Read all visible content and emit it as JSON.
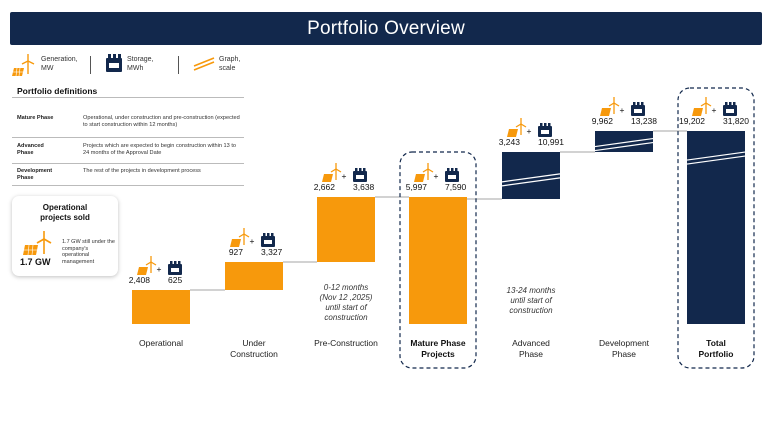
{
  "title": "Portfolio Overview",
  "legend": {
    "generation": "Generation, MW",
    "storage": "Storage, MWh",
    "graph": "Graph, scale"
  },
  "definitions": {
    "title": "Portfolio definitions",
    "rows": [
      {
        "key": "Mature Phase",
        "value": "Operational, under construction and pre-construction (expected to start construction within 12 months)"
      },
      {
        "key": "Advanced Phase",
        "value": "Projects which are expected to begin construction within 13 to 24 months of the Approval Date"
      },
      {
        "key": "Development Phase",
        "value": "The rest of the projects in development process"
      }
    ]
  },
  "sold": {
    "title": "Operational projects sold",
    "value": "1.7 GW",
    "note": "1.7 GW still under the company's operational management"
  },
  "colors": {
    "orange": "#f7990c",
    "navy": "#12284c",
    "bar_border": "#12284c"
  },
  "chart_data": {
    "type": "bar",
    "subtype": "waterfall",
    "categories": [
      "Operational",
      "Under Construction",
      "Pre-Construction",
      "Mature Phase Projects",
      "Advanced Phase",
      "Development Phase",
      "Total Portfolio"
    ],
    "series": [
      {
        "name": "Generation, MW",
        "values": [
          2408,
          927,
          2662,
          5997,
          3243,
          9962,
          19202
        ]
      },
      {
        "name": "Storage, MWh",
        "values": [
          625,
          3327,
          3638,
          7590,
          10991,
          13238,
          31820
        ]
      }
    ],
    "labels": [
      [
        "2,408",
        "625"
      ],
      [
        "927",
        "3,327"
      ],
      [
        "2,662",
        "3,638"
      ],
      [
        "5,997",
        "7,590"
      ],
      [
        "3,243",
        "10,991"
      ],
      [
        "9,962",
        "13,238"
      ],
      [
        "19,202",
        "31,820"
      ]
    ],
    "bar_kind": [
      "delta",
      "delta",
      "delta",
      "total",
      "delta",
      "delta",
      "total"
    ],
    "bar_color": [
      "orange",
      "orange",
      "orange",
      "orange",
      "navy",
      "navy",
      "navy"
    ],
    "highlighted": [
      false,
      false,
      false,
      true,
      false,
      false,
      true
    ],
    "scale_break": [
      false,
      false,
      false,
      false,
      true,
      true,
      true
    ],
    "annotations": [
      {
        "category": "Pre-Construction",
        "text": [
          "0-12 months",
          "(Nov 12 ,2025)",
          "until start of",
          "construction"
        ]
      },
      {
        "category": "Advanced Phase",
        "text": [
          "13-24 months",
          "until start of",
          "construction"
        ]
      }
    ],
    "cat_label_lines": [
      [
        "Operational"
      ],
      [
        "Under",
        "Construction"
      ],
      [
        "Pre-Construction"
      ],
      [
        "Mature Phase",
        "Projects"
      ],
      [
        "Advanced",
        "Phase"
      ],
      [
        "Development",
        "Phase"
      ],
      [
        "Total",
        "Portfolio"
      ]
    ],
    "xlabel": "",
    "ylabel": "",
    "grid": false
  }
}
